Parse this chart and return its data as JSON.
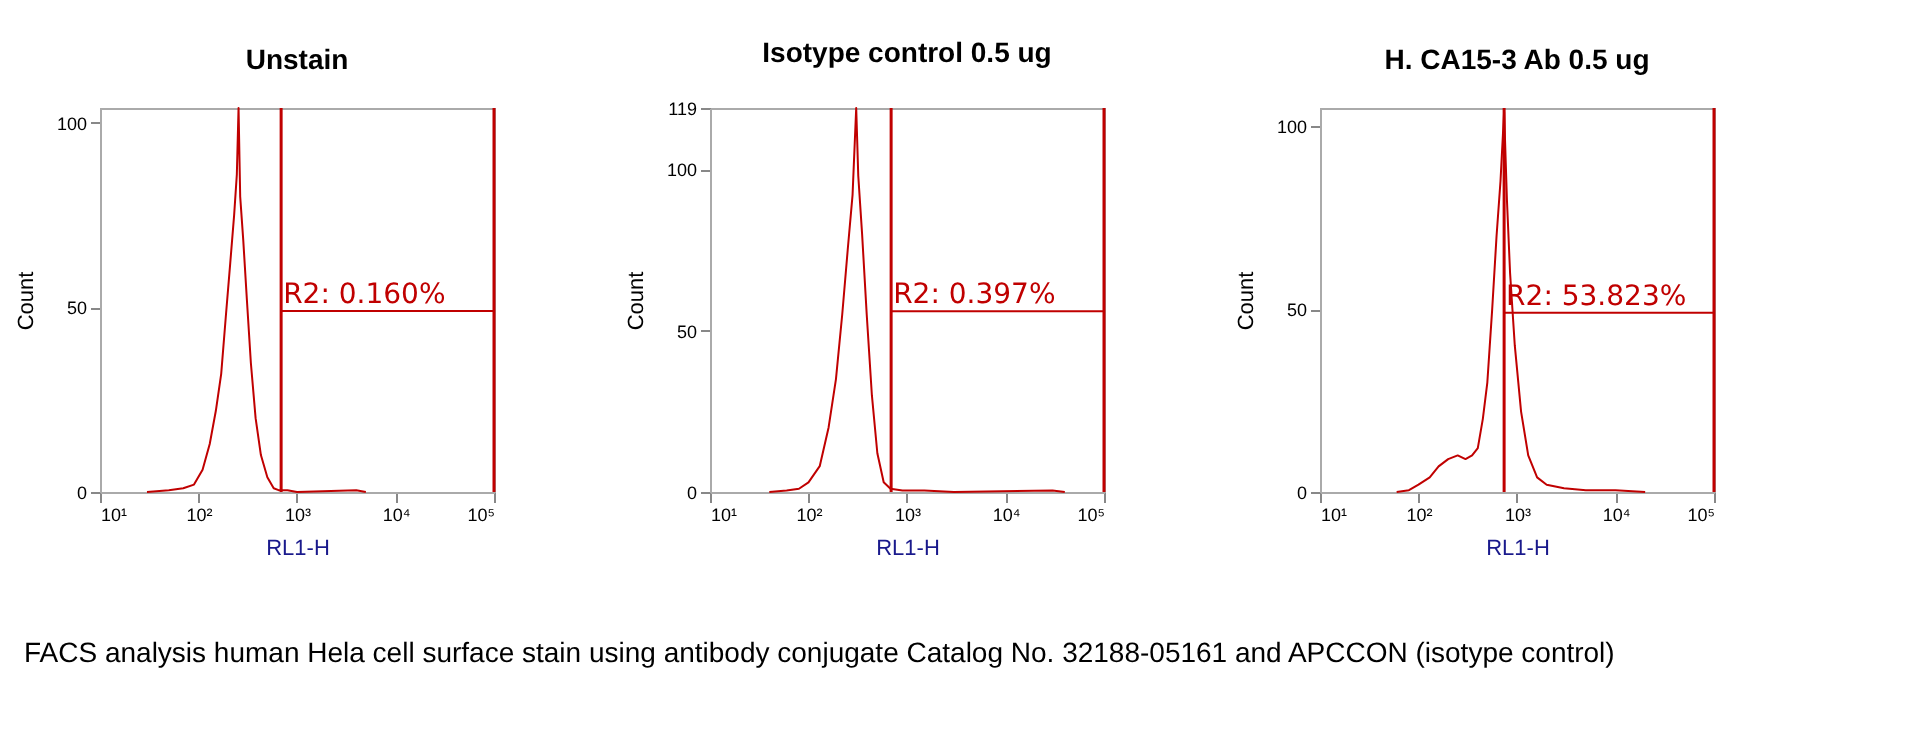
{
  "chart_data": [
    {
      "type": "line",
      "title": "Unstain",
      "xlabel": "RL1-H",
      "ylabel": "Count",
      "log": "x",
      "grid": false,
      "marker": "none",
      "xlim": [
        10,
        100000
      ],
      "xticks": [
        {
          "value": 10,
          "label": "10¹"
        },
        {
          "value": 100,
          "label": "10²"
        },
        {
          "value": 1000,
          "label": "10³"
        },
        {
          "value": 10000,
          "label": "10⁴"
        },
        {
          "value": 100000,
          "label": "10⁵"
        }
      ],
      "ylim": [
        0,
        104
      ],
      "yticks": [
        0,
        50,
        100
      ],
      "series": [
        {
          "color": "#c00000",
          "x": [
            30,
            50,
            70,
            90,
            110,
            130,
            150,
            170,
            190,
            210,
            230,
            245,
            255,
            265,
            285,
            310,
            340,
            380,
            430,
            500,
            580,
            650,
            800,
            1000,
            4000,
            5000
          ],
          "values": [
            0,
            0.5,
            1,
            2,
            6,
            13,
            22,
            32,
            48,
            62,
            75,
            86,
            104,
            80,
            68,
            52,
            35,
            20,
            10,
            4,
            1,
            0.5,
            0.5,
            0,
            0.5,
            0
          ]
        },
        {
          "color": "#c00000",
          "x": [
            690,
            100000
          ],
          "values": [
            49,
            49
          ]
        }
      ],
      "ref_lines": [
        {
          "axis": "x",
          "value": 690,
          "color": "#c00000"
        },
        {
          "axis": "x",
          "value": 100000,
          "color": "#c00000"
        }
      ],
      "annotations": [
        "R2: 0.160%",
        "FACS analysis human Hela cell surface stain using antibody conjugate Catalog No. 32188-05161 and APCCON (isotype control)"
      ]
    },
    {
      "type": "line",
      "title": "Isotype control 0.5 ug",
      "xlabel": "RL1-H",
      "ylabel": "Count",
      "log": "x",
      "grid": false,
      "marker": "none",
      "xlim": [
        10,
        100000
      ],
      "xticks": [
        {
          "value": 10,
          "label": "10¹"
        },
        {
          "value": 100,
          "label": "10²"
        },
        {
          "value": 1000,
          "label": "10³"
        },
        {
          "value": 10000,
          "label": "10⁴"
        },
        {
          "value": 100000,
          "label": "10⁵"
        }
      ],
      "ylim": [
        0,
        119
      ],
      "yticks": [
        0,
        50,
        100,
        119
      ],
      "series": [
        {
          "color": "#c00000",
          "x": [
            40,
            60,
            80,
            100,
            130,
            160,
            190,
            220,
            250,
            280,
            305,
            320,
            350,
            390,
            440,
            500,
            580,
            680,
            900,
            1500,
            3000,
            30000,
            40000
          ],
          "values": [
            0,
            0.5,
            1,
            3,
            8,
            20,
            35,
            55,
            75,
            92,
            119,
            98,
            80,
            55,
            30,
            12,
            3,
            1,
            0.5,
            0.5,
            0,
            0.5,
            0
          ]
        },
        {
          "color": "#c00000",
          "x": [
            690,
            100000
          ],
          "values": [
            56,
            56
          ]
        }
      ],
      "ref_lines": [
        {
          "axis": "x",
          "value": 690,
          "color": "#c00000"
        },
        {
          "axis": "x",
          "value": 100000,
          "color": "#c00000"
        }
      ],
      "annotations": [
        "R2: 0.397%"
      ]
    },
    {
      "type": "line",
      "title": "H. CA15-3 Ab 0.5 ug",
      "xlabel": "RL1-H",
      "ylabel": "Count",
      "log": "x",
      "grid": false,
      "marker": "none",
      "xlim": [
        10,
        100000
      ],
      "xticks": [
        {
          "value": 10,
          "label": "10¹"
        },
        {
          "value": 100,
          "label": "10²"
        },
        {
          "value": 1000,
          "label": "10³"
        },
        {
          "value": 10000,
          "label": "10⁴"
        },
        {
          "value": 100000,
          "label": "10⁵"
        }
      ],
      "ylim": [
        0,
        105
      ],
      "yticks": [
        0,
        50,
        100
      ],
      "series": [
        {
          "color": "#c00000",
          "x": [
            60,
            80,
            100,
            130,
            160,
            200,
            250,
            300,
            350,
            400,
            450,
            500,
            560,
            620,
            680,
            740,
            790,
            850,
            950,
            1100,
            1300,
            1600,
            2000,
            3000,
            5000,
            10000,
            20000
          ],
          "values": [
            0,
            0.5,
            2,
            4,
            7,
            9,
            10,
            9,
            10,
            12,
            20,
            30,
            50,
            70,
            85,
            104,
            80,
            60,
            40,
            22,
            10,
            4,
            2,
            1,
            0.5,
            0.5,
            0
          ]
        },
        {
          "color": "#c00000",
          "x": [
            740,
            100000
          ],
          "values": [
            49,
            49
          ]
        }
      ],
      "ref_lines": [
        {
          "axis": "x",
          "value": 740,
          "color": "#c00000"
        },
        {
          "axis": "x",
          "value": 100000,
          "color": "#c00000"
        }
      ],
      "annotations": [
        "R2: 53.823%"
      ]
    }
  ]
}
